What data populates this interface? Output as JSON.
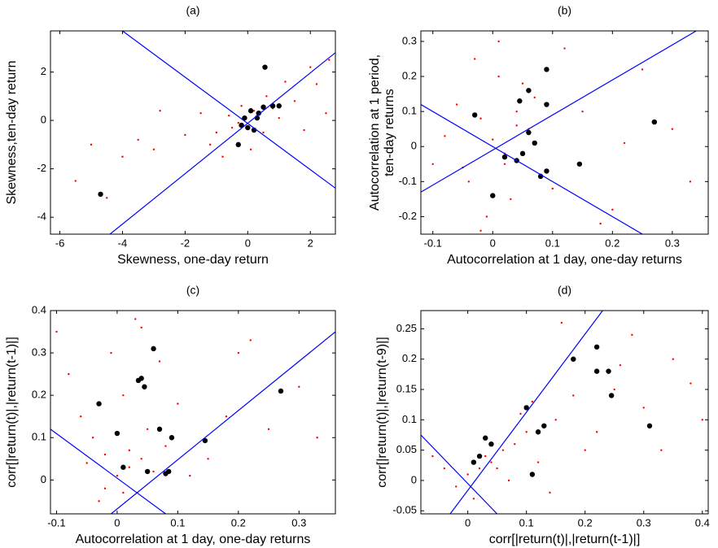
{
  "chart_data": [
    {
      "type": "scatter",
      "title": "(a)",
      "xlabel": "Skewness, one-day return",
      "ylabel": [
        "Skewness,ten-day return"
      ],
      "xlim": [
        -6.3,
        2.8
      ],
      "ylim": [
        -4.7,
        3.7
      ],
      "xticks": [
        -6,
        -4,
        -2,
        0,
        2
      ],
      "yticks": [
        -4,
        -2,
        0,
        2
      ],
      "series": [
        {
          "color": "#ff0000",
          "size": 1.2,
          "x": [
            -0.5,
            0.3,
            -1,
            0.8,
            1.5,
            -2,
            -3,
            -4,
            -5.5,
            2.2,
            1.2,
            -0.2,
            0.5,
            -1.5,
            2.5,
            1.8,
            -2.8,
            -3.5,
            0.1,
            -0.8,
            2,
            -4.5,
            -1.2,
            0.6,
            -0.3,
            0.2,
            1,
            -0.6,
            -5,
            2.6
          ],
          "y": [
            -0.3,
            0.2,
            -0.5,
            0.5,
            0.8,
            -0.6,
            -1.2,
            -1.5,
            -2.5,
            1.5,
            1.6,
            0.6,
            -0.5,
            0.3,
            0.3,
            -0.4,
            0.4,
            -0.8,
            -1.2,
            -1.5,
            2.2,
            -3.2,
            -1,
            1,
            -0.1,
            0.4,
            0.1,
            0.2,
            -1,
            2.5
          ]
        },
        {
          "color": "#000000",
          "size": 3.2,
          "x": [
            -4.7,
            0.55,
            -0.3,
            -0.2,
            0.1,
            0.3,
            0.5,
            0.8,
            1,
            0.2,
            -0.1,
            0,
            0.35
          ],
          "y": [
            -3.05,
            2.2,
            -1,
            -0.2,
            0.4,
            0.1,
            0.55,
            0.6,
            0.6,
            -0.4,
            0.1,
            -0.3,
            0.3
          ]
        }
      ],
      "lines": [
        {
          "color": "#0000ff",
          "x": [
            -4.4,
            2.8
          ],
          "y": [
            -4.7,
            2.8
          ]
        },
        {
          "color": "#0000ff",
          "x": [
            -4,
            2.8
          ],
          "y": [
            3.7,
            -2.8
          ]
        }
      ]
    },
    {
      "type": "scatter",
      "title": "(b)",
      "xlabel": "Autocorrelation at 1 day, one-day returns",
      "ylabel": [
        "Autocorrelation at 1 period,",
        "ten-day returns"
      ],
      "xlim": [
        -0.12,
        0.36
      ],
      "ylim": [
        -0.25,
        0.33
      ],
      "xticks": [
        -0.1,
        0,
        0.1,
        0.2,
        0.3
      ],
      "yticks": [
        -0.2,
        -0.1,
        0,
        0.1,
        0.2,
        0.3
      ],
      "series": [
        {
          "color": "#ff0000",
          "size": 1.2,
          "x": [
            0,
            0.02,
            -0.02,
            0.04,
            -0.04,
            0.01,
            -0.01,
            0.06,
            -0.06,
            0.03,
            -0.03,
            0.08,
            -0.08,
            0.05,
            0.1,
            0.15,
            0.2,
            0.25,
            0.3,
            -0.1,
            0.12,
            0.18,
            0.02,
            -0.05,
            0.07,
            0.22,
            0.33,
            0.01,
            -0.02,
            0.04
          ],
          "y": [
            0.02,
            -0.05,
            0.08,
            0.1,
            -0.1,
            0.2,
            -0.2,
            0.05,
            0.12,
            -0.15,
            0.25,
            -0.08,
            0.03,
            0.18,
            -0.12,
            0.1,
            -0.18,
            0.22,
            0.05,
            -0.05,
            0.28,
            -0.22,
            -0.02,
            -0.06,
            0.14,
            0.01,
            -0.1,
            0.3,
            -0.24,
            0.06
          ]
        },
        {
          "color": "#000000",
          "size": 3.2,
          "x": [
            0.27,
            0.09,
            0.06,
            0.045,
            0.09,
            -0.03,
            0,
            0.08,
            0.09,
            0.145,
            0.04,
            0.05,
            0.02,
            0.06,
            0.07
          ],
          "y": [
            0.07,
            0.22,
            0.16,
            0.13,
            0.12,
            0.09,
            -0.14,
            -0.085,
            -0.07,
            -0.05,
            -0.04,
            -0.02,
            -0.03,
            0.04,
            0.01
          ]
        }
      ],
      "lines": [
        {
          "color": "#0000ff",
          "x": [
            -0.12,
            0.34
          ],
          "y": [
            -0.13,
            0.33
          ]
        },
        {
          "color": "#0000ff",
          "x": [
            -0.12,
            0.25
          ],
          "y": [
            0.12,
            -0.25
          ]
        }
      ]
    },
    {
      "type": "scatter",
      "title": "(c)",
      "xlabel": "Autocorrelation at 1 day, one-day returns",
      "ylabel": [
        "corr[|return(t)|,|return(t-1)|]"
      ],
      "xlim": [
        -0.11,
        0.36
      ],
      "ylim": [
        -0.08,
        0.4
      ],
      "xticks": [
        -0.1,
        0,
        0.1,
        0.2,
        0.3
      ],
      "yticks": [
        0,
        0.1,
        0.2,
        0.3,
        0.4
      ],
      "series": [
        {
          "color": "#ff0000",
          "size": 1.2,
          "x": [
            0,
            0.02,
            -0.02,
            0.04,
            -0.04,
            0.01,
            -0.01,
            0.06,
            -0.06,
            0.03,
            -0.03,
            0.08,
            -0.08,
            0.05,
            0.1,
            0.15,
            0.2,
            0.25,
            0.3,
            -0.1,
            0.12,
            0.18,
            0.02,
            -0.05,
            0.07,
            0.22,
            0.33,
            0.01,
            -0.02,
            0.04
          ],
          "y": [
            0.01,
            0.03,
            -0.02,
            0.05,
            0.1,
            0.2,
            0.3,
            0.02,
            0.15,
            0.38,
            -0.05,
            0.08,
            0.25,
            0.12,
            0.18,
            0.05,
            0.3,
            0.12,
            0.22,
            0.35,
            0.01,
            0.15,
            0.07,
            0.04,
            0.28,
            0.33,
            0.1,
            -0.03,
            0.06,
            0.36
          ]
        },
        {
          "color": "#000000",
          "size": 3.2,
          "x": [
            0.27,
            -0.03,
            0.035,
            0.04,
            0.045,
            0.06,
            0,
            0.07,
            0.09,
            0.145,
            0.08,
            0.085,
            0.01,
            0.05
          ],
          "y": [
            0.21,
            0.18,
            0.235,
            0.24,
            0.22,
            0.31,
            0.11,
            0.12,
            0.1,
            0.093,
            0.015,
            0.02,
            0.03,
            0.02
          ]
        }
      ],
      "lines": [
        {
          "color": "#0000ff",
          "x": [
            -0.01,
            0.36
          ],
          "y": [
            -0.08,
            0.35
          ]
        },
        {
          "color": "#0000ff",
          "x": [
            -0.11,
            0.08
          ],
          "y": [
            0.12,
            -0.08
          ]
        }
      ]
    },
    {
      "type": "scatter",
      "title": "(d)",
      "xlabel": "corr[|return(t)|,|return(t-1)|]",
      "ylabel": [
        "corr[|return(t)|,|return(t-9)|]"
      ],
      "xlim": [
        -0.08,
        0.41
      ],
      "ylim": [
        -0.055,
        0.28
      ],
      "xticks": [
        0,
        0.1,
        0.2,
        0.3,
        0.4
      ],
      "yticks": [
        -0.05,
        0,
        0.05,
        0.1,
        0.15,
        0.2,
        0.25
      ],
      "series": [
        {
          "color": "#ff0000",
          "size": 1.2,
          "x": [
            0,
            0.02,
            -0.02,
            0.04,
            -0.04,
            0.01,
            0.06,
            0.03,
            0.08,
            0.05,
            0.1,
            0.15,
            0.2,
            0.25,
            0.3,
            0.35,
            0.12,
            0.18,
            0.22,
            0.28,
            0.38,
            0.14,
            0.09,
            0.07,
            0.33,
            0.26,
            0.16,
            0.4,
            -0.06,
            0.11
          ],
          "y": [
            0.01,
            0.02,
            -0.01,
            0.03,
            0.02,
            -0.03,
            0.05,
            0.04,
            0.06,
            0.02,
            0.08,
            0.1,
            0.05,
            0.15,
            0.12,
            0.2,
            0.03,
            0.14,
            0.08,
            0.24,
            0.16,
            -0.02,
            0.11,
            0,
            0.05,
            0.19,
            0.26,
            0.1,
            0.04,
            0.13
          ]
        },
        {
          "color": "#000000",
          "size": 3.2,
          "x": [
            0.31,
            0.22,
            0.18,
            0.22,
            0.24,
            0.245,
            0.1,
            0.12,
            0.13,
            0.03,
            0.02,
            0.01,
            0.11,
            0.04
          ],
          "y": [
            0.09,
            0.22,
            0.2,
            0.18,
            0.18,
            0.14,
            0.12,
            0.08,
            0.09,
            0.07,
            0.04,
            0.03,
            0.01,
            0.06
          ]
        }
      ],
      "lines": [
        {
          "color": "#0000ff",
          "x": [
            -0.03,
            0.23
          ],
          "y": [
            -0.055,
            0.28
          ]
        },
        {
          "color": "#0000ff",
          "x": [
            -0.08,
            0.05
          ],
          "y": [
            0.075,
            -0.055
          ]
        }
      ]
    }
  ]
}
